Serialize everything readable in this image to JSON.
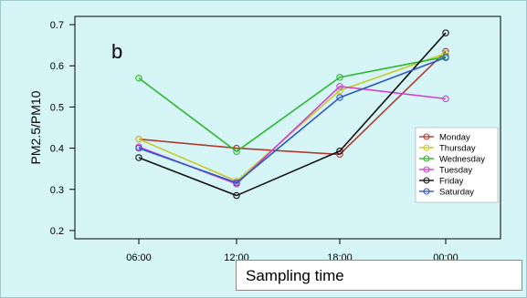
{
  "chart_data": {
    "type": "line",
    "panel_label": "b",
    "xlabel": "Sampling time",
    "ylabel": "PM2.5/PM10",
    "categories": [
      "06:00",
      "12:00",
      "18:00",
      "00:00"
    ],
    "ylim": [
      0.18,
      0.72
    ],
    "yticks": [
      0.2,
      0.3,
      0.4,
      0.5,
      0.6,
      0.7
    ],
    "ytick_labels": [
      "0.2",
      "0.3",
      "0.4",
      "0.5",
      "0.6",
      "0.7"
    ],
    "grid": false,
    "legend_position": "right",
    "series": [
      {
        "name": "Monday",
        "color": "#b03a2e",
        "values": [
          0.422,
          0.4,
          0.385,
          0.635
        ]
      },
      {
        "name": "Thursday",
        "color": "#c8c82a",
        "values": [
          0.422,
          0.32,
          0.54,
          0.63
        ]
      },
      {
        "name": "Wednesday",
        "color": "#2db82d",
        "values": [
          0.57,
          0.392,
          0.572,
          0.622
        ]
      },
      {
        "name": "Tuesday",
        "color": "#d23fd2",
        "values": [
          0.403,
          0.313,
          0.55,
          0.52
        ]
      },
      {
        "name": "Friday",
        "color": "#111111",
        "values": [
          0.377,
          0.285,
          0.393,
          0.68
        ]
      },
      {
        "name": "Saturday",
        "color": "#2f57c7",
        "values": [
          0.4,
          0.316,
          0.523,
          0.62
        ]
      }
    ]
  }
}
